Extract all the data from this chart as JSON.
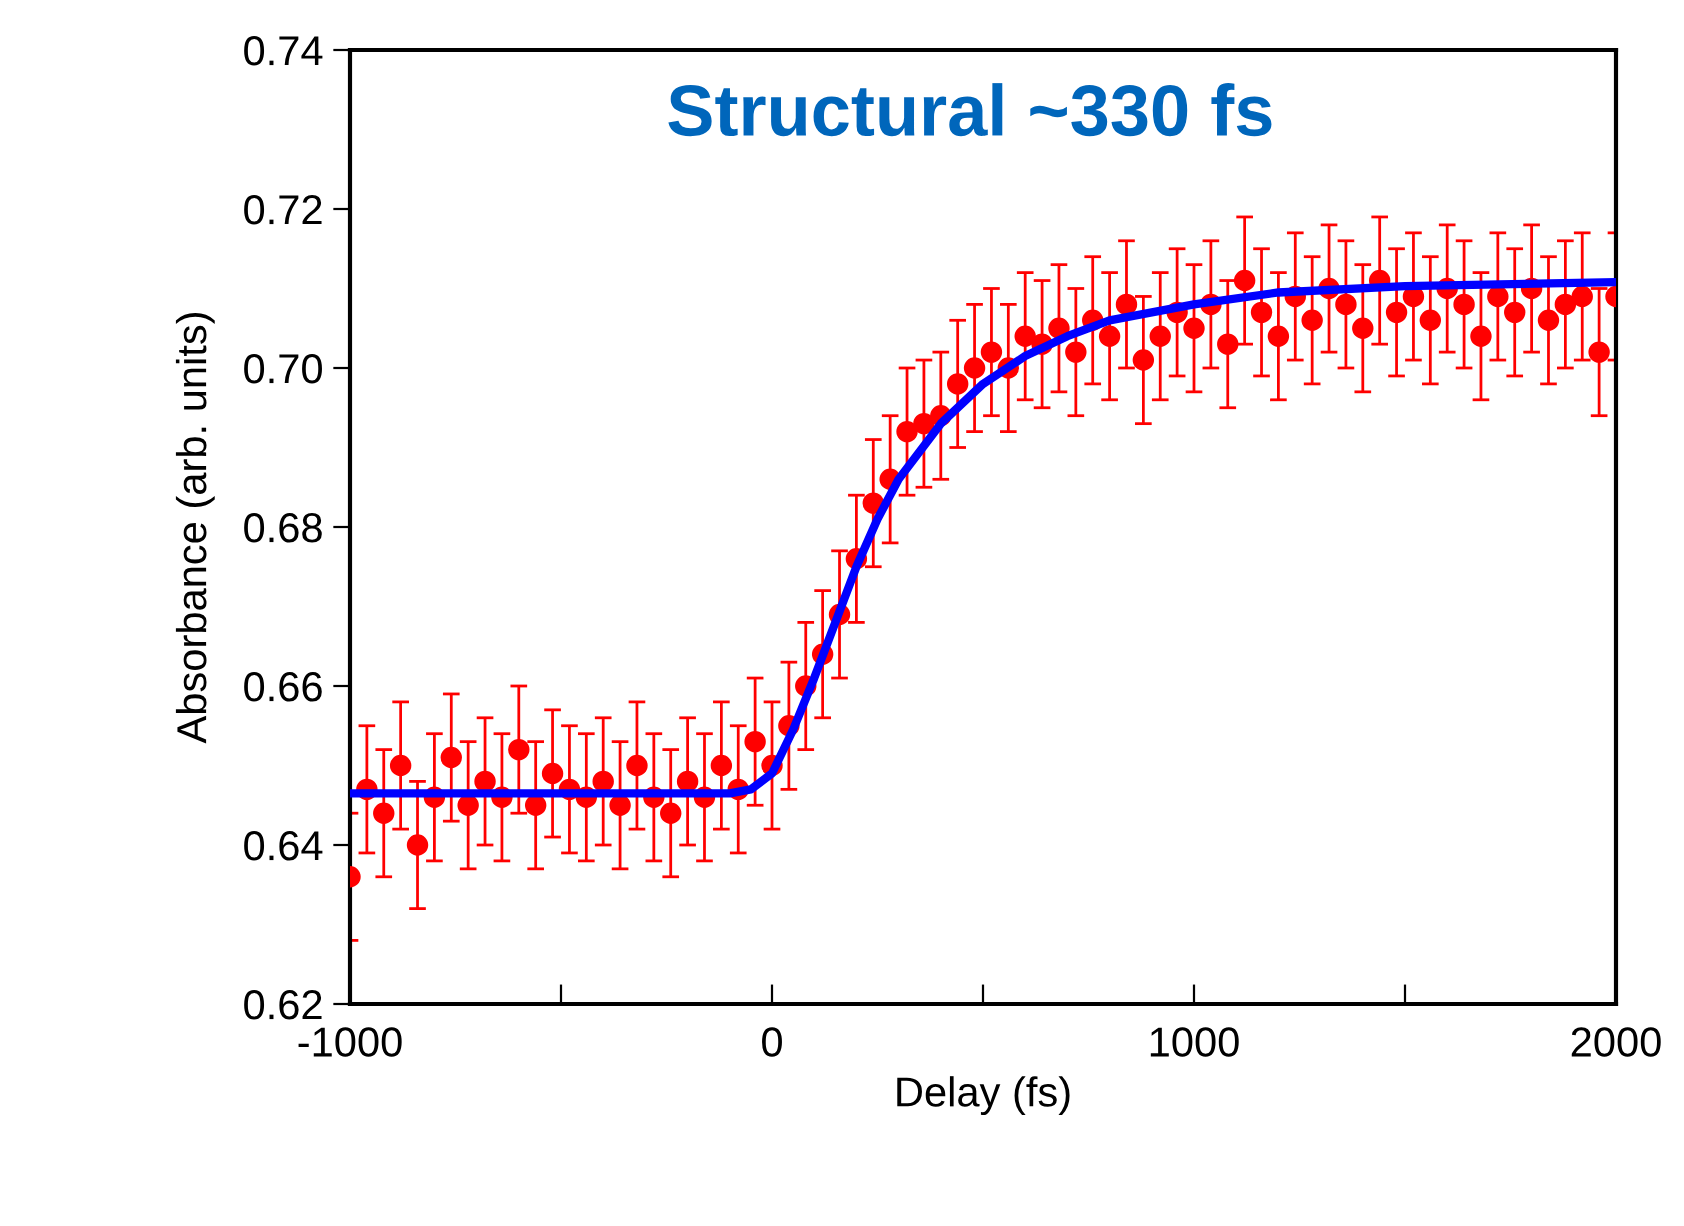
{
  "chart_data": {
    "type": "scatter",
    "xlabel": "Delay (fs)",
    "ylabel": "Absorbance (arb. units)",
    "annotations": [
      "Structural ~330 fs"
    ],
    "xlim": [
      -1000,
      2000
    ],
    "xticks": [
      -1000,
      {
        "value": -500,
        "label": null
      },
      0,
      {
        "value": 500,
        "label": null
      },
      1000,
      {
        "value": 1500,
        "label": null
      },
      2000
    ],
    "ylim": [
      0.62,
      0.74
    ],
    "yticks": [
      0.62,
      0.64,
      0.66,
      0.68,
      {
        "value": 0.7,
        "label": "0.70"
      },
      0.72,
      0.74
    ],
    "grid": false,
    "series": [
      {
        "color": "#ff0000",
        "marker": "circle",
        "x": [
          -1000,
          -960,
          -920,
          -880,
          -840,
          -800,
          -760,
          -720,
          -680,
          -640,
          -600,
          -560,
          -520,
          -480,
          -440,
          -400,
          -360,
          -320,
          -280,
          -240,
          -200,
          -160,
          -120,
          -80,
          -40,
          0,
          40,
          80,
          120,
          160,
          200,
          240,
          280,
          320,
          360,
          400,
          440,
          480,
          520,
          560,
          600,
          640,
          680,
          720,
          760,
          800,
          840,
          880,
          920,
          960,
          1000,
          1040,
          1080,
          1120,
          1160,
          1200,
          1240,
          1280,
          1320,
          1360,
          1400,
          1440,
          1480,
          1520,
          1560,
          1600,
          1640,
          1680,
          1720,
          1760,
          1800,
          1840,
          1880,
          1920,
          1960,
          2000
        ],
        "values": [
          0.636,
          0.647,
          0.644,
          0.65,
          0.64,
          0.646,
          0.651,
          0.645,
          0.648,
          0.646,
          0.652,
          0.645,
          0.649,
          0.647,
          0.646,
          0.648,
          0.645,
          0.65,
          0.646,
          0.644,
          0.648,
          0.646,
          0.65,
          0.647,
          0.653,
          0.65,
          0.655,
          0.66,
          0.664,
          0.669,
          0.676,
          0.683,
          0.686,
          0.692,
          0.693,
          0.694,
          0.698,
          0.7,
          0.702,
          0.7,
          0.704,
          0.703,
          0.705,
          0.702,
          0.706,
          0.704,
          0.708,
          0.701,
          0.704,
          0.707,
          0.705,
          0.708,
          0.703,
          0.711,
          0.707,
          0.704,
          0.709,
          0.706,
          0.71,
          0.708,
          0.705,
          0.711,
          0.707,
          0.709,
          0.706,
          0.71,
          0.708,
          0.704,
          0.709,
          0.707,
          0.71,
          0.706,
          0.708,
          0.709,
          0.702,
          0.709
        ],
        "errors": [
          0.008,
          0.008,
          0.008,
          0.008,
          0.008,
          0.008,
          0.008,
          0.008,
          0.008,
          0.008,
          0.008,
          0.008,
          0.008,
          0.008,
          0.008,
          0.008,
          0.008,
          0.008,
          0.008,
          0.008,
          0.008,
          0.008,
          0.008,
          0.008,
          0.008,
          0.008,
          0.008,
          0.008,
          0.008,
          0.008,
          0.008,
          0.008,
          0.008,
          0.008,
          0.008,
          0.008,
          0.008,
          0.008,
          0.008,
          0.008,
          0.008,
          0.008,
          0.008,
          0.008,
          0.008,
          0.008,
          0.008,
          0.008,
          0.008,
          0.008,
          0.008,
          0.008,
          0.008,
          0.008,
          0.008,
          0.008,
          0.008,
          0.008,
          0.008,
          0.008,
          0.008,
          0.008,
          0.008,
          0.008,
          0.008,
          0.008,
          0.008,
          0.008,
          0.008,
          0.008,
          0.008,
          0.008,
          0.008,
          0.008,
          0.008,
          0.008
        ]
      },
      {
        "type": "line",
        "color": "#0000ff",
        "marker": "none",
        "line_style": "solid",
        "x": [
          -1000,
          -500,
          -100,
          -50,
          0,
          50,
          100,
          150,
          200,
          250,
          300,
          400,
          500,
          600,
          700,
          800,
          1000,
          1200,
          1500,
          2000
        ],
        "values": [
          0.6465,
          0.6465,
          0.6465,
          0.647,
          0.649,
          0.6545,
          0.661,
          0.668,
          0.675,
          0.681,
          0.686,
          0.693,
          0.698,
          0.7015,
          0.704,
          0.706,
          0.708,
          0.7095,
          0.7103,
          0.7108
        ]
      }
    ]
  }
}
